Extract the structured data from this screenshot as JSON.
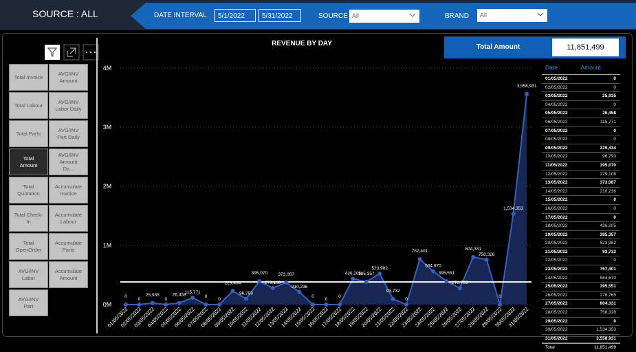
{
  "header": {
    "source_label": "SOURCE : ALL",
    "date_interval_label": "DATE INTERVAL",
    "date_from": "5/1/2022",
    "date_to": "5/31/2022",
    "source_filter_label": "SOURCE",
    "source_filter_value": "All",
    "brand_filter_label": "BRAND",
    "brand_filter_value": "All"
  },
  "buttons": [
    "Total Invoice",
    "AVG/INV Amount",
    "Total Labour",
    "AVG/INV Labor Daily",
    "Total Parts",
    "AVG/INV Part Daily",
    "Total Amount",
    "AVG/INV Amount Da...",
    "Total Quotation",
    "Accumulate Invoice",
    "Total Check-In",
    "Accumulate Labour",
    "Total OpenOrder",
    "Accumulate Parts",
    "AVG/INV Labor",
    "Accumulate Amount",
    "AVG/INV Part"
  ],
  "card": {
    "label": "Total Amount",
    "value": "11,851,499"
  },
  "chart_data": {
    "type": "area",
    "title": "REVENUE BY DAY",
    "color": "#2f62c4",
    "categories": [
      "01/05/2022",
      "02/05/2022",
      "03/05/2022",
      "04/05/2022",
      "05/05/2022",
      "06/05/2022",
      "07/05/2022",
      "08/05/2022",
      "09/05/2022",
      "10/05/2022",
      "11/05/2022",
      "12/05/2022",
      "13/05/2022",
      "14/05/2022",
      "15/05/2022",
      "16/05/2022",
      "17/05/2022",
      "18/05/2022",
      "19/05/2022",
      "20/05/2022",
      "21/05/2022",
      "22/05/2022",
      "23/05/2022",
      "24/05/2022",
      "25/05/2022",
      "26/05/2022",
      "27/05/2022",
      "28/05/2022",
      "29/05/2022",
      "30/05/2022",
      "31/05/2022"
    ],
    "values": [
      0,
      0,
      25935,
      0,
      26458,
      115771,
      0,
      0,
      229434,
      96793,
      395070,
      279108,
      373087,
      210236,
      0,
      0,
      0,
      436205,
      385357,
      523982,
      93732,
      0,
      767401,
      564670,
      395551,
      276765,
      804331,
      758328,
      0,
      1534353,
      3558931
    ],
    "value_labels": [
      "0",
      "0",
      "25,935",
      "0",
      "26,458",
      "115,771",
      "0",
      "0",
      "229,434",
      "96,793",
      "395,070",
      "279,108",
      "373,087",
      "210,236",
      "0",
      "0",
      "0",
      "436,205",
      "385,357",
      "523,982",
      "93,732",
      "0",
      "767,401",
      "564,670",
      "395,551",
      "276,765",
      "804,331",
      "758,328",
      "0",
      "1,534,353",
      "3,558,931"
    ],
    "ylim": [
      0,
      4000000
    ],
    "yticks": [
      {
        "value": 0,
        "label": "0M"
      },
      {
        "value": 1000000,
        "label": "1M"
      },
      {
        "value": 2000000,
        "label": "2M"
      },
      {
        "value": 3000000,
        "label": "3M"
      },
      {
        "value": 4000000,
        "label": "4M"
      }
    ],
    "grid": true,
    "average_line": 382306
  },
  "table": {
    "columns": [
      "Date",
      "Amount"
    ],
    "rows": [
      [
        "01/05/2022",
        "0"
      ],
      [
        "02/05/2022",
        "0"
      ],
      [
        "03/05/2022",
        "25,935"
      ],
      [
        "04/05/2022",
        "0"
      ],
      [
        "05/05/2022",
        "26,458"
      ],
      [
        "06/05/2022",
        "115,771"
      ],
      [
        "07/05/2022",
        "0"
      ],
      [
        "08/05/2022",
        "0"
      ],
      [
        "09/05/2022",
        "229,434"
      ],
      [
        "10/05/2022",
        "96,793"
      ],
      [
        "11/05/2022",
        "395,070"
      ],
      [
        "12/05/2022",
        "279,108"
      ],
      [
        "13/05/2022",
        "373,087"
      ],
      [
        "14/05/2022",
        "210,236"
      ],
      [
        "15/05/2022",
        "0"
      ],
      [
        "16/05/2022",
        "0"
      ],
      [
        "17/05/2022",
        "0"
      ],
      [
        "18/05/2022",
        "436,205"
      ],
      [
        "19/05/2022",
        "385,357"
      ],
      [
        "20/05/2022",
        "523,982"
      ],
      [
        "21/05/2022",
        "93,732"
      ],
      [
        "22/05/2022",
        "0"
      ],
      [
        "23/05/2022",
        "767,401"
      ],
      [
        "24/05/2022",
        "564,670"
      ],
      [
        "25/05/2022",
        "395,551"
      ],
      [
        "26/05/2022",
        "276,765"
      ],
      [
        "27/05/2022",
        "804,331"
      ],
      [
        "28/05/2022",
        "758,328"
      ],
      [
        "29/05/2022",
        "0"
      ],
      [
        "30/05/2022",
        "1,534,353"
      ],
      [
        "31/05/2022",
        "3,558,931"
      ]
    ],
    "total": [
      "Total",
      "11,851,499"
    ]
  }
}
